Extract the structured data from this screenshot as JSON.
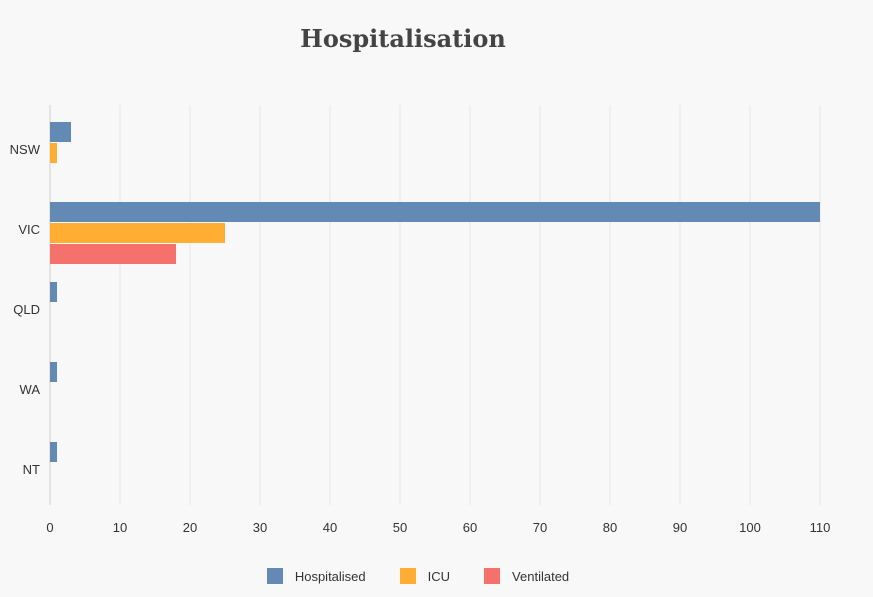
{
  "chart_data": {
    "type": "bar",
    "orientation": "horizontal",
    "title": "Hospitalisation",
    "categories": [
      "NSW",
      "VIC",
      "QLD",
      "WA",
      "NT"
    ],
    "series": [
      {
        "name": "Hospitalised",
        "color": "#6389b5",
        "values": [
          3,
          110,
          1,
          1,
          1
        ]
      },
      {
        "name": "ICU",
        "color": "#ffad33",
        "values": [
          1,
          25,
          0,
          0,
          0
        ]
      },
      {
        "name": "Ventilated",
        "color": "#f4716c",
        "values": [
          0,
          18,
          0,
          0,
          0
        ]
      }
    ],
    "xlim": [
      0,
      110
    ],
    "xticks": [
      0,
      10,
      20,
      30,
      40,
      50,
      60,
      70,
      80,
      90,
      100,
      110
    ],
    "grid": true,
    "legend_position": "bottom"
  }
}
